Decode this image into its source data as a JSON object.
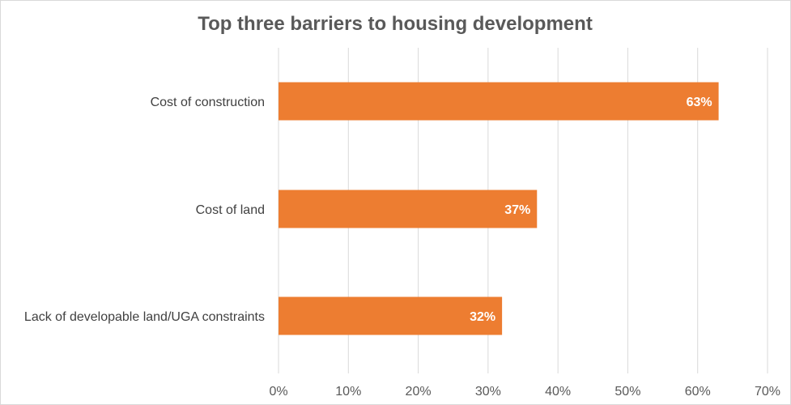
{
  "chart_data": {
    "type": "bar",
    "orientation": "horizontal",
    "title": "Top three barriers to housing development",
    "categories": [
      "Cost of construction",
      "Cost of land",
      "Lack of developable land/UGA constraints"
    ],
    "values": [
      63,
      37,
      32
    ],
    "data_labels": [
      "63%",
      "37%",
      "32%"
    ],
    "xlim": [
      0,
      70
    ],
    "ticks": [
      0,
      10,
      20,
      30,
      40,
      50,
      60,
      70
    ],
    "tick_labels": [
      "0%",
      "10%",
      "20%",
      "30%",
      "40%",
      "50%",
      "60%",
      "70%"
    ],
    "grid": "vertical",
    "legend": "none",
    "colors": {
      "bar": "#ed7d31",
      "grid": "#d9d9d9"
    }
  }
}
